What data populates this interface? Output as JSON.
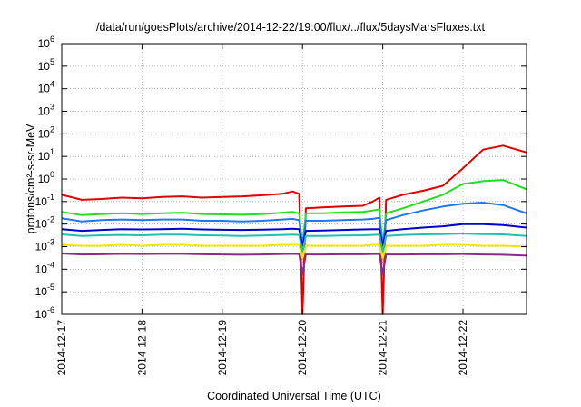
{
  "chart_data": {
    "type": "line",
    "title": "/data/run/goesPlots/archive/2014-12-22/19:00/flux/../flux/5daysMarsFluxes.txt",
    "xlabel": "Coordinated Universal Time (UTC)",
    "ylabel": "protons/cm²-s-sr-MeV",
    "y_scale": "log",
    "ylim": [
      1e-06,
      1000000.0
    ],
    "xlim": [
      "2014-12-17",
      "2014-12-22T19:00"
    ],
    "grid": true,
    "y_tick_values": [
      1e-06,
      1e-05,
      0.0001,
      0.001,
      0.01,
      0.1,
      1,
      10,
      100,
      1000.0,
      10000.0,
      100000.0,
      1000000.0
    ],
    "y_ticks": [
      {
        "base": "10",
        "exp": "-6"
      },
      {
        "base": "10",
        "exp": "-5"
      },
      {
        "base": "10",
        "exp": "-4"
      },
      {
        "base": "10",
        "exp": "-3"
      },
      {
        "base": "10",
        "exp": "-2"
      },
      {
        "base": "10",
        "exp": "-1"
      },
      {
        "base": "10",
        "exp": "0"
      },
      {
        "base": "10",
        "exp": "1"
      },
      {
        "base": "10",
        "exp": "2"
      },
      {
        "base": "10",
        "exp": "3"
      },
      {
        "base": "10",
        "exp": "4"
      },
      {
        "base": "10",
        "exp": "5"
      },
      {
        "base": "10",
        "exp": "6"
      }
    ],
    "x_ticks": [
      "2014-12-17",
      "2014-12-18",
      "2014-12-19",
      "2014-12-20",
      "2014-12-21",
      "2014-12-22"
    ],
    "x": [
      "2014-12-17T00:00",
      "2014-12-17T06:00",
      "2014-12-17T12:00",
      "2014-12-17T18:00",
      "2014-12-18T00:00",
      "2014-12-18T06:00",
      "2014-12-18T12:00",
      "2014-12-18T18:00",
      "2014-12-19T00:00",
      "2014-12-19T06:00",
      "2014-12-19T12:00",
      "2014-12-19T18:00",
      "2014-12-19T21:00",
      "2014-12-19T23:00",
      "2014-12-20T00:00",
      "2014-12-20T01:00",
      "2014-12-20T06:00",
      "2014-12-20T12:00",
      "2014-12-20T18:00",
      "2014-12-20T21:00",
      "2014-12-20T23:00",
      "2014-12-21T00:00",
      "2014-12-21T01:00",
      "2014-12-21T06:00",
      "2014-12-21T12:00",
      "2014-12-21T18:00",
      "2014-12-22T00:00",
      "2014-12-22T06:00",
      "2014-12-22T12:00",
      "2014-12-22T19:00"
    ],
    "series": [
      {
        "color": "#e00000",
        "values": [
          0.2,
          0.12,
          0.13,
          0.15,
          0.14,
          0.16,
          0.17,
          0.15,
          0.16,
          0.17,
          0.19,
          0.22,
          0.28,
          0.22,
          1e-06,
          0.05,
          0.055,
          0.06,
          0.065,
          0.1,
          0.15,
          1e-06,
          0.12,
          0.2,
          0.3,
          0.5,
          3,
          20,
          30,
          15
        ]
      },
      {
        "color": "#22dd22",
        "values": [
          0.035,
          0.025,
          0.028,
          0.03,
          0.028,
          0.03,
          0.032,
          0.028,
          0.027,
          0.026,
          0.028,
          0.032,
          0.035,
          0.03,
          0.001,
          0.03,
          0.03,
          0.033,
          0.035,
          0.04,
          0.045,
          0.001,
          0.03,
          0.05,
          0.1,
          0.2,
          0.6,
          0.8,
          0.9,
          0.35
        ]
      },
      {
        "color": "#2277ee",
        "values": [
          0.018,
          0.013,
          0.015,
          0.016,
          0.015,
          0.016,
          0.016,
          0.014,
          0.014,
          0.013,
          0.014,
          0.016,
          0.017,
          0.015,
          0.001,
          0.014,
          0.014,
          0.015,
          0.016,
          0.017,
          0.019,
          0.001,
          0.015,
          0.025,
          0.04,
          0.06,
          0.08,
          0.09,
          0.07,
          0.03
        ]
      },
      {
        "color": "#0000cc",
        "values": [
          0.006,
          0.005,
          0.0055,
          0.006,
          0.0058,
          0.006,
          0.0062,
          0.0058,
          0.0056,
          0.0055,
          0.0057,
          0.006,
          0.0062,
          0.006,
          0.001,
          0.005,
          0.0052,
          0.0055,
          0.0058,
          0.006,
          0.006,
          0.001,
          0.005,
          0.006,
          0.007,
          0.008,
          0.01,
          0.01,
          0.009,
          0.007
        ]
      },
      {
        "color": "#20c0b0",
        "values": [
          0.0035,
          0.003,
          0.0032,
          0.0033,
          0.0032,
          0.0034,
          0.0034,
          0.0032,
          0.0031,
          0.003,
          0.0031,
          0.0033,
          0.0034,
          0.0033,
          0.0006,
          0.003,
          0.003,
          0.0031,
          0.0032,
          0.0033,
          0.0034,
          0.0006,
          0.003,
          0.0033,
          0.0035,
          0.0036,
          0.0038,
          0.0036,
          0.0035,
          0.003
        ]
      },
      {
        "color": "#f0e800",
        "values": [
          0.0012,
          0.0011,
          0.0011,
          0.0012,
          0.0011,
          0.0012,
          0.0012,
          0.0011,
          0.0011,
          0.0011,
          0.0011,
          0.0012,
          0.0012,
          0.0012,
          0.0003,
          0.0011,
          0.0011,
          0.0011,
          0.0011,
          0.0012,
          0.0012,
          0.0003,
          0.0011,
          0.0011,
          0.0011,
          0.0012,
          0.0012,
          0.0011,
          0.0011,
          0.001
        ]
      },
      {
        "color": "#8b2a8b",
        "values": [
          0.0005,
          0.00045,
          0.00046,
          0.00048,
          0.00047,
          0.00048,
          0.00048,
          0.00046,
          0.00045,
          0.00044,
          0.00045,
          0.00047,
          0.00048,
          0.00047,
          6e-05,
          0.00045,
          0.00045,
          0.00046,
          0.00046,
          0.00047,
          0.00047,
          6e-05,
          0.00045,
          0.00045,
          0.00046,
          0.00046,
          0.00047,
          0.00045,
          0.00044,
          0.0004
        ]
      }
    ]
  }
}
